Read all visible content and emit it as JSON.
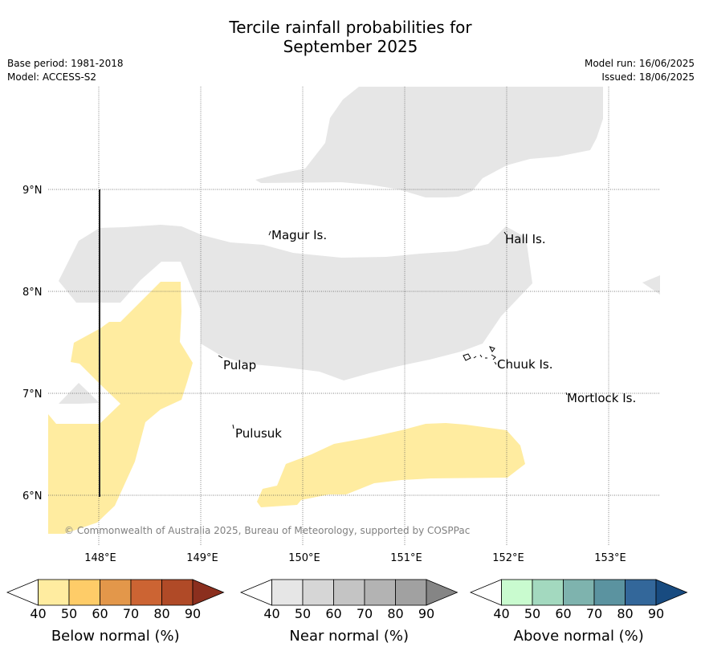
{
  "title_line1": "Tercile rainfall probabilities for",
  "title_line2": "September 2025",
  "meta_left": {
    "base_period": "Base period: 1981-2018",
    "model": "Model: ACCESS-S2"
  },
  "meta_right": {
    "model_run": "Model run: 16/06/2025",
    "issued": "Issued: 18/06/2025"
  },
  "map": {
    "lat_ticks": [
      "9°N",
      "8°N",
      "7°N",
      "6°N"
    ],
    "lon_ticks": [
      "148°E",
      "149°E",
      "150°E",
      "151°E",
      "152°E",
      "153°E"
    ],
    "places": [
      "Magur Is.",
      "Hall Is.",
      "Pulap",
      "Chuuk Is.",
      "Mortlock Is.",
      "Pulusuk"
    ],
    "copyright": "© Commonwealth of Australia 2025, Bureau of Meteorology, supported by COSPPac",
    "colors": {
      "near_normal_region": "#e6e6e6",
      "below_normal_40_50": "#ffeca0",
      "grid": "#555555"
    }
  },
  "colorbars": [
    {
      "label": "Below normal (%)",
      "ticks": [
        "40",
        "50",
        "60",
        "70",
        "80",
        "90"
      ],
      "colors": [
        "#ffffff",
        "#ffeca0",
        "#fecc68",
        "#e3974a",
        "#cc6433",
        "#b04a27",
        "#8b2f1e"
      ]
    },
    {
      "label": "Near normal (%)",
      "ticks": [
        "40",
        "50",
        "60",
        "70",
        "80",
        "90"
      ],
      "colors": [
        "#ffffff",
        "#e6e6e6",
        "#d6d6d6",
        "#c4c4c4",
        "#b3b3b3",
        "#a1a1a1",
        "#858585"
      ]
    },
    {
      "label": "Above normal (%)",
      "ticks": [
        "40",
        "50",
        "60",
        "70",
        "80",
        "90"
      ],
      "colors": [
        "#ffffff",
        "#c9fbcf",
        "#a3d9bf",
        "#7eb3ae",
        "#5b93a0",
        "#33679a",
        "#184b80"
      ]
    }
  ]
}
